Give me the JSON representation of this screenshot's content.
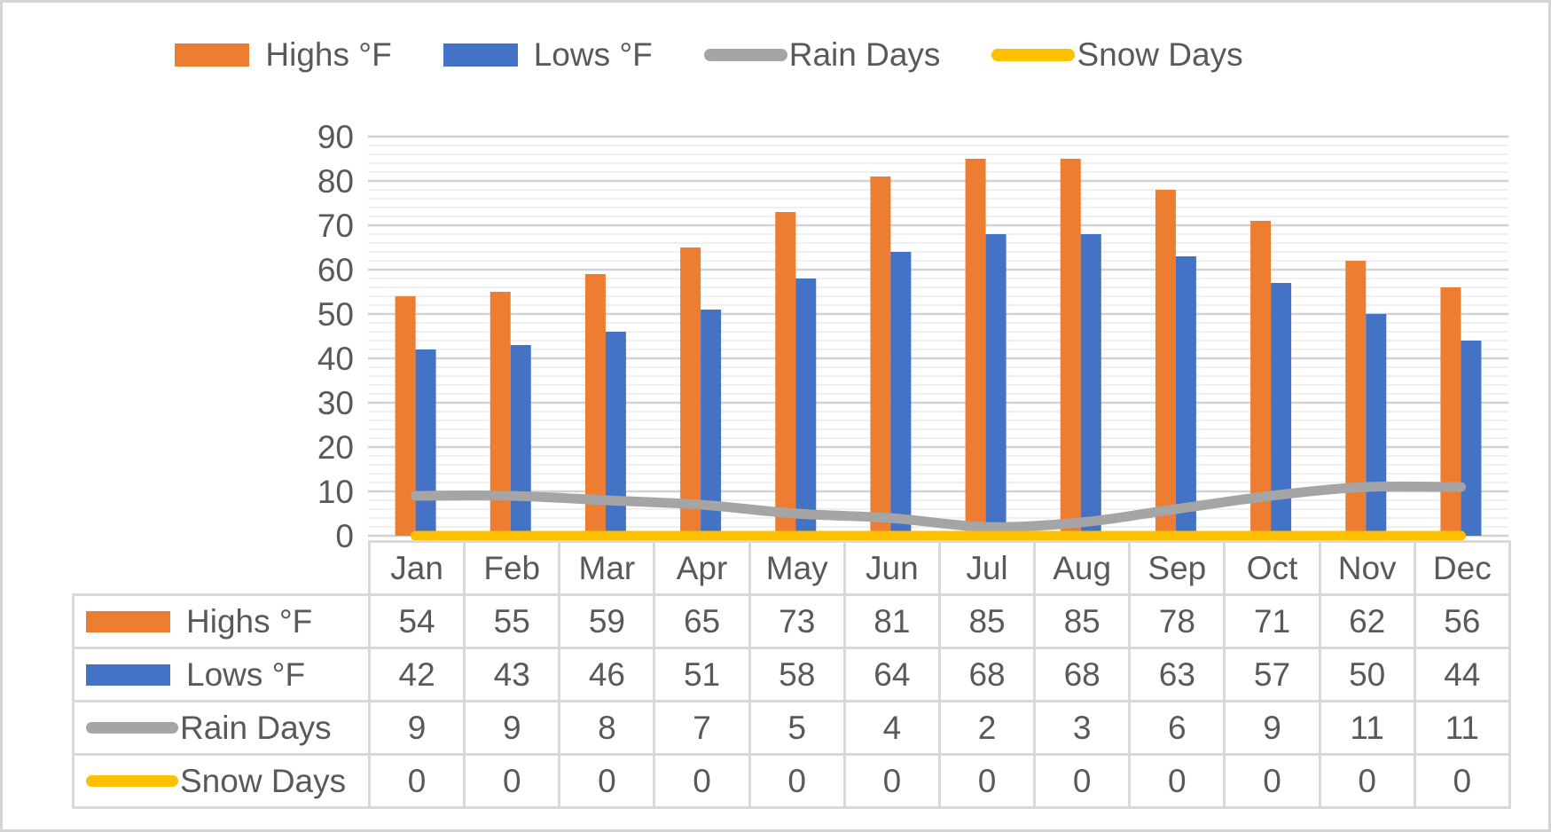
{
  "legend": {
    "items": [
      {
        "label": "Highs °F",
        "type": "bar",
        "color": "#ED7D31"
      },
      {
        "label": "Lows °F",
        "type": "bar",
        "color": "#4472C4"
      },
      {
        "label": "Rain Days",
        "type": "line",
        "color": "#A5A5A5"
      },
      {
        "label": "Snow Days",
        "type": "line",
        "color": "#FFC000"
      }
    ]
  },
  "chart_data": {
    "type": "combo",
    "categories": [
      "Jan",
      "Feb",
      "Mar",
      "Apr",
      "May",
      "Jun",
      "Jul",
      "Aug",
      "Sep",
      "Oct",
      "Nov",
      "Dec"
    ],
    "series": [
      {
        "name": "Highs °F",
        "type": "bar",
        "color": "#ED7D31",
        "smooth": false,
        "values": [
          54,
          55,
          59,
          65,
          73,
          81,
          85,
          85,
          78,
          71,
          62,
          56
        ]
      },
      {
        "name": "Lows °F",
        "type": "bar",
        "color": "#4472C4",
        "smooth": false,
        "values": [
          42,
          43,
          46,
          51,
          58,
          64,
          68,
          68,
          63,
          57,
          50,
          44
        ]
      },
      {
        "name": "Rain Days",
        "type": "line",
        "color": "#A5A5A5",
        "smooth": true,
        "values": [
          9,
          9,
          8,
          7,
          5,
          4,
          2,
          3,
          6,
          9,
          11,
          11
        ]
      },
      {
        "name": "Snow Days",
        "type": "line",
        "color": "#FFC000",
        "smooth": false,
        "values": [
          0,
          0,
          0,
          0,
          0,
          0,
          0,
          0,
          0,
          0,
          0,
          0
        ]
      }
    ],
    "title": "",
    "xlabel": "",
    "ylabel": "",
    "y_axis": {
      "min": 0,
      "max": 90,
      "major_step": 10,
      "minor_step": 2,
      "tick_labels": [
        "0",
        "10",
        "20",
        "30",
        "40",
        "50",
        "60",
        "70",
        "80",
        "90"
      ]
    },
    "grid": "horizontal major and minor gridlines",
    "legend_position": "top",
    "data_table_shown": true
  },
  "colors": {
    "text": "#595959",
    "grid_major": "#d2d2d2",
    "grid_minor": "#ececec",
    "table_border": "#d9d9d9"
  }
}
